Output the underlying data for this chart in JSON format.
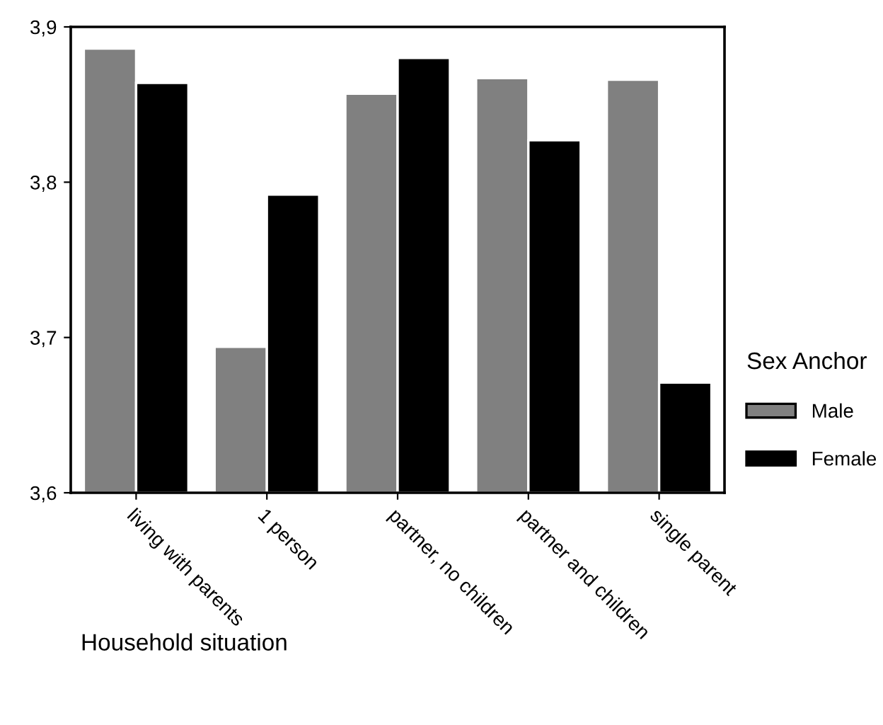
{
  "chart_data": {
    "type": "bar",
    "xlabel": "Household situation",
    "legend_title": "Sex Anchor",
    "categories": [
      "living with parents",
      "1 person",
      "partner, no children",
      "partner and children",
      "single parent"
    ],
    "series": [
      {
        "name": "Male",
        "color": "#808080",
        "values": [
          3.886,
          3.694,
          3.857,
          3.867,
          3.866
        ]
      },
      {
        "name": "Female",
        "color": "#000000",
        "values": [
          3.864,
          3.792,
          3.88,
          3.827,
          3.671
        ]
      }
    ],
    "ylim": [
      3.6,
      3.9
    ],
    "yticks": [
      {
        "value": 3.6,
        "label": "3,6"
      },
      {
        "value": 3.7,
        "label": "3,7"
      },
      {
        "value": 3.8,
        "label": "3,8"
      },
      {
        "value": 3.9,
        "label": "3,9"
      }
    ],
    "grid": false,
    "legend": "right"
  }
}
